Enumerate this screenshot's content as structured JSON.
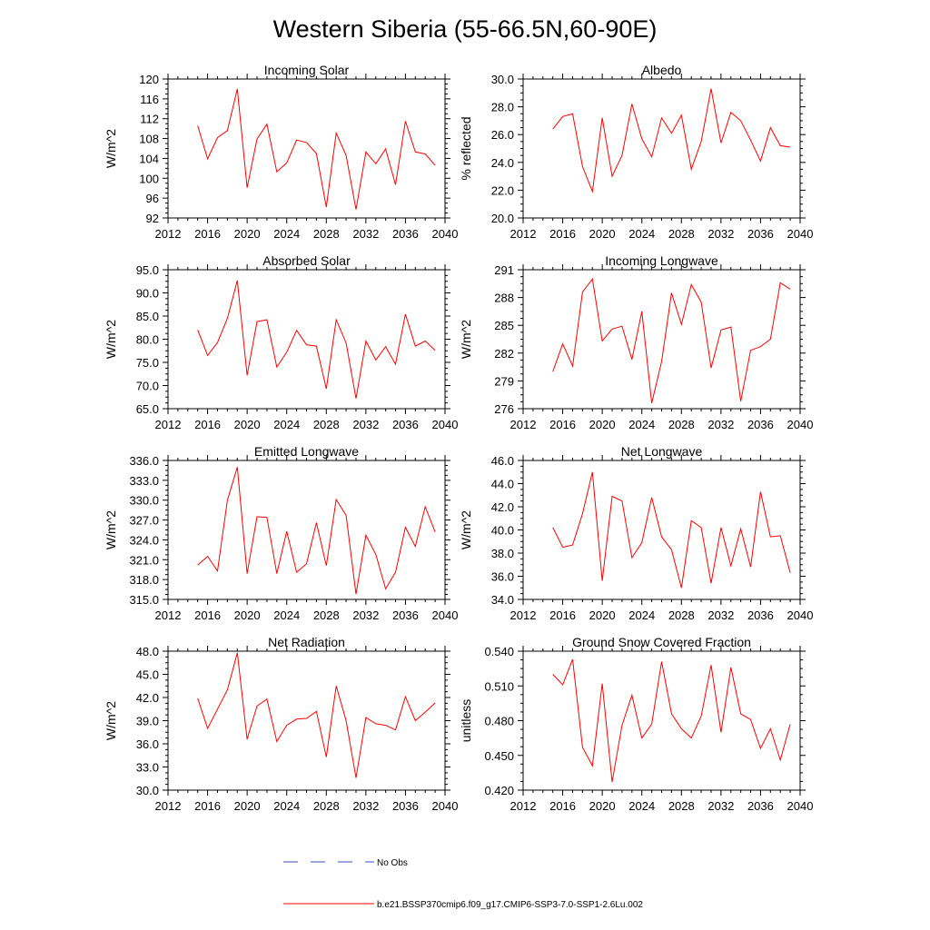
{
  "page_title": "Western Siberia (55-66.5N,60-90E)",
  "legend": {
    "obs_label": "No Obs",
    "obs_color": "#3b4cc0",
    "model_label": "b.e21.BSSP370cmip6.f09_g17.CMIP6-SSP3-7.0-SSP1-2.6Lu.002",
    "model_color": "#ff0000"
  },
  "chart_data": [
    {
      "type": "line",
      "title": "Incoming Solar",
      "ylabel": "W/m^2",
      "xlabel": "",
      "xlim": [
        2012,
        2040
      ],
      "xticks": [
        "2012",
        "2016",
        "2020",
        "2024",
        "2028",
        "2032",
        "2036",
        "2040"
      ],
      "ylim": [
        92,
        120
      ],
      "yticks": [
        "92",
        "96",
        "100",
        "104",
        "108",
        "112",
        "116",
        "120"
      ],
      "series": [
        {
          "color": "#ff0000",
          "x": [
            2015,
            2016,
            2017,
            2018,
            2019,
            2020,
            2021,
            2022,
            2023,
            2024,
            2025,
            2026,
            2027,
            2028,
            2029,
            2030,
            2031,
            2032,
            2033,
            2034,
            2035,
            2036,
            2037,
            2038,
            2039
          ],
          "values": [
            110.6,
            103.9,
            108.2,
            109.6,
            118.0,
            98.1,
            107.9,
            110.9,
            101.3,
            103.1,
            107.7,
            107.2,
            105.0,
            94.2,
            109.1,
            104.6,
            93.7,
            105.3,
            102.9,
            105.9,
            98.7,
            111.5,
            105.3,
            104.9,
            102.6
          ]
        }
      ]
    },
    {
      "type": "line",
      "title": "Albedo",
      "ylabel": "% reflected",
      "xlabel": "",
      "xlim": [
        2012,
        2040
      ],
      "xticks": [
        "2012",
        "2016",
        "2020",
        "2024",
        "2028",
        "2032",
        "2036",
        "2040"
      ],
      "ylim": [
        20,
        30
      ],
      "yticks": [
        "20.0",
        "22.0",
        "24.0",
        "26.0",
        "28.0",
        "30.0"
      ],
      "series": [
        {
          "color": "#ff0000",
          "x": [
            2015,
            2016,
            2017,
            2018,
            2019,
            2020,
            2021,
            2022,
            2023,
            2024,
            2025,
            2026,
            2027,
            2028,
            2029,
            2030,
            2031,
            2032,
            2033,
            2034,
            2035,
            2036,
            2037,
            2038,
            2039
          ],
          "values": [
            26.4,
            27.3,
            27.5,
            23.7,
            21.9,
            27.2,
            23.0,
            24.5,
            28.2,
            25.7,
            24.4,
            27.2,
            26.1,
            27.4,
            23.5,
            25.5,
            29.3,
            25.4,
            27.6,
            27.0,
            25.6,
            24.1,
            26.5,
            25.2,
            25.1
          ]
        }
      ]
    },
    {
      "type": "line",
      "title": "Absorbed Solar",
      "ylabel": "W/m^2",
      "xlabel": "",
      "xlim": [
        2012,
        2040
      ],
      "xticks": [
        "2012",
        "2016",
        "2020",
        "2024",
        "2028",
        "2032",
        "2036",
        "2040"
      ],
      "ylim": [
        65,
        95
      ],
      "yticks": [
        "65.0",
        "70.0",
        "75.0",
        "80.0",
        "85.0",
        "90.0",
        "95.0"
      ],
      "series": [
        {
          "color": "#ff0000",
          "x": [
            2015,
            2016,
            2017,
            2018,
            2019,
            2020,
            2021,
            2022,
            2023,
            2024,
            2025,
            2026,
            2027,
            2028,
            2029,
            2030,
            2031,
            2032,
            2033,
            2034,
            2035,
            2036,
            2037,
            2038,
            2039
          ],
          "values": [
            82.0,
            76.5,
            79.3,
            84.5,
            92.7,
            72.2,
            83.8,
            84.2,
            74.0,
            77.2,
            81.9,
            78.8,
            78.5,
            69.3,
            84.2,
            79.2,
            67.2,
            79.6,
            75.5,
            78.4,
            74.6,
            85.4,
            78.5,
            79.6,
            77.6
          ]
        }
      ]
    },
    {
      "type": "line",
      "title": "Incoming Longwave",
      "ylabel": "W/m^2",
      "xlabel": "",
      "xlim": [
        2012,
        2040
      ],
      "xticks": [
        "2012",
        "2016",
        "2020",
        "2024",
        "2028",
        "2032",
        "2036",
        "2040"
      ],
      "ylim": [
        276,
        291
      ],
      "yticks": [
        "276",
        "279",
        "282",
        "285",
        "288",
        "291"
      ],
      "series": [
        {
          "color": "#ff0000",
          "x": [
            2015,
            2016,
            2017,
            2018,
            2019,
            2020,
            2021,
            2022,
            2023,
            2024,
            2025,
            2026,
            2027,
            2028,
            2029,
            2030,
            2031,
            2032,
            2033,
            2034,
            2035,
            2036,
            2037,
            2038,
            2039
          ],
          "values": [
            280.0,
            283.0,
            280.6,
            288.6,
            290.0,
            283.3,
            284.6,
            284.9,
            281.3,
            286.5,
            276.6,
            281.1,
            288.5,
            285.1,
            289.4,
            287.5,
            280.4,
            284.5,
            284.8,
            276.8,
            282.3,
            282.7,
            283.5,
            289.6,
            288.9
          ]
        }
      ]
    },
    {
      "type": "line",
      "title": "Emitted Longwave",
      "ylabel": "W/m^2",
      "xlabel": "",
      "xlim": [
        2012,
        2040
      ],
      "xticks": [
        "2012",
        "2016",
        "2020",
        "2024",
        "2028",
        "2032",
        "2036",
        "2040"
      ],
      "ylim": [
        315,
        336
      ],
      "yticks": [
        "315.0",
        "318.0",
        "321.0",
        "324.0",
        "327.0",
        "330.0",
        "333.0",
        "336.0"
      ],
      "series": [
        {
          "color": "#ff0000",
          "x": [
            2015,
            2016,
            2017,
            2018,
            2019,
            2020,
            2021,
            2022,
            2023,
            2024,
            2025,
            2026,
            2027,
            2028,
            2029,
            2030,
            2031,
            2032,
            2033,
            2034,
            2035,
            2036,
            2037,
            2038,
            2039
          ],
          "values": [
            320.2,
            321.5,
            319.3,
            330.0,
            335.0,
            318.9,
            327.5,
            327.4,
            318.9,
            325.3,
            319.1,
            320.4,
            326.6,
            320.1,
            330.1,
            327.7,
            315.8,
            324.7,
            321.8,
            316.6,
            319.1,
            325.9,
            323.0,
            329.0,
            325.2
          ]
        }
      ]
    },
    {
      "type": "line",
      "title": "Net Longwave",
      "ylabel": "W/m^2",
      "xlabel": "",
      "xlim": [
        2012,
        2040
      ],
      "xticks": [
        "2012",
        "2016",
        "2020",
        "2024",
        "2028",
        "2032",
        "2036",
        "2040"
      ],
      "ylim": [
        34,
        46
      ],
      "yticks": [
        "34.0",
        "36.0",
        "38.0",
        "40.0",
        "42.0",
        "44.0",
        "46.0"
      ],
      "series": [
        {
          "color": "#ff0000",
          "x": [
            2015,
            2016,
            2017,
            2018,
            2019,
            2020,
            2021,
            2022,
            2023,
            2024,
            2025,
            2026,
            2027,
            2028,
            2029,
            2030,
            2031,
            2032,
            2033,
            2034,
            2035,
            2036,
            2037,
            2038,
            2039
          ],
          "values": [
            40.2,
            38.5,
            38.7,
            41.4,
            45.0,
            35.6,
            42.9,
            42.5,
            37.6,
            38.9,
            42.8,
            39.4,
            38.3,
            35.0,
            40.8,
            40.2,
            35.4,
            40.2,
            36.9,
            40.1,
            36.8,
            43.3,
            39.4,
            39.5,
            36.3
          ]
        }
      ]
    },
    {
      "type": "line",
      "title": "Net Radiation",
      "ylabel": "W/m^2",
      "xlabel": "",
      "xlim": [
        2012,
        2040
      ],
      "xticks": [
        "2012",
        "2016",
        "2020",
        "2024",
        "2028",
        "2032",
        "2036",
        "2040"
      ],
      "ylim": [
        30,
        48
      ],
      "yticks": [
        "30.0",
        "33.0",
        "36.0",
        "39.0",
        "42.0",
        "45.0",
        "48.0"
      ],
      "series": [
        {
          "color": "#ff0000",
          "x": [
            2015,
            2016,
            2017,
            2018,
            2019,
            2020,
            2021,
            2022,
            2023,
            2024,
            2025,
            2026,
            2027,
            2028,
            2029,
            2030,
            2031,
            2032,
            2033,
            2034,
            2035,
            2036,
            2037,
            2038,
            2039
          ],
          "values": [
            41.9,
            38.0,
            40.5,
            43.0,
            47.8,
            36.6,
            40.9,
            41.8,
            36.3,
            38.4,
            39.2,
            39.3,
            40.2,
            34.3,
            43.5,
            39.0,
            31.6,
            39.4,
            38.6,
            38.4,
            37.8,
            42.1,
            39.0,
            40.1,
            41.3
          ]
        }
      ]
    },
    {
      "type": "line",
      "title": "Ground Snow Covered Fraction",
      "ylabel": "unitless",
      "xlabel": "",
      "xlim": [
        2012,
        2040
      ],
      "xticks": [
        "2012",
        "2016",
        "2020",
        "2024",
        "2028",
        "2032",
        "2036",
        "2040"
      ],
      "ylim": [
        0.42,
        0.54
      ],
      "yticks": [
        "0.420",
        "0.450",
        "0.480",
        "0.510",
        "0.540"
      ],
      "series": [
        {
          "color": "#ff0000",
          "x": [
            2015,
            2016,
            2017,
            2018,
            2019,
            2020,
            2021,
            2022,
            2023,
            2024,
            2025,
            2026,
            2027,
            2028,
            2029,
            2030,
            2031,
            2032,
            2033,
            2034,
            2035,
            2036,
            2037,
            2038,
            2039
          ],
          "values": [
            0.52,
            0.511,
            0.533,
            0.457,
            0.441,
            0.512,
            0.427,
            0.476,
            0.502,
            0.465,
            0.477,
            0.531,
            0.486,
            0.473,
            0.465,
            0.484,
            0.528,
            0.47,
            0.526,
            0.486,
            0.481,
            0.456,
            0.473,
            0.446,
            0.477
          ]
        }
      ]
    }
  ]
}
